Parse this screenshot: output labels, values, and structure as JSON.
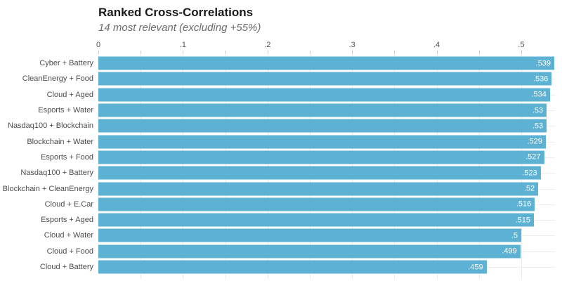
{
  "header": {
    "title": "Ranked Cross-Correlations",
    "subtitle": "14 most relevant (excluding +55%)"
  },
  "chart_data": {
    "type": "bar",
    "orientation": "horizontal",
    "title": "Ranked Cross-Correlations",
    "subtitle": "14 most relevant (excluding +55%)",
    "categories": [
      "Cyber + Battery",
      "CleanEnergy + Food",
      "Cloud + Aged",
      "Esports + Water",
      "Nasdaq100 + Blockchain",
      "Blockchain + Water",
      "Esports + Food",
      "Nasdaq100 + Battery",
      "Blockchain + CleanEnergy",
      "Cloud + E.Car",
      "Esports + Aged",
      "Cloud + Water",
      "Cloud + Food",
      "Cloud + Battery"
    ],
    "values": [
      0.539,
      0.536,
      0.534,
      0.53,
      0.53,
      0.529,
      0.527,
      0.523,
      0.52,
      0.516,
      0.515,
      0.5,
      0.499,
      0.459
    ],
    "value_labels": [
      ".539",
      ".536",
      ".534",
      ".53",
      ".53",
      ".529",
      ".527",
      ".523",
      ".52",
      ".516",
      ".515",
      ".5",
      ".499",
      ".459"
    ],
    "x_axis": {
      "position": "top",
      "ticks": [
        0,
        0.1,
        0.2,
        0.3,
        0.4,
        0.5
      ],
      "tick_labels": [
        "0",
        ".1",
        ".2",
        ".3",
        ".4",
        ".5"
      ],
      "minor_step": 0.05,
      "range": [
        0,
        0.54
      ],
      "grid": true
    },
    "colors": {
      "bar": "#5db1d3",
      "value_text": "#ffffff",
      "grid": "#e9e9e9",
      "row_line": "#ededed",
      "axis_text": "#555555",
      "category_text": "#4d4d4d",
      "title_text": "#1a1a1a",
      "subtitle_text": "#6b6b6b"
    }
  }
}
